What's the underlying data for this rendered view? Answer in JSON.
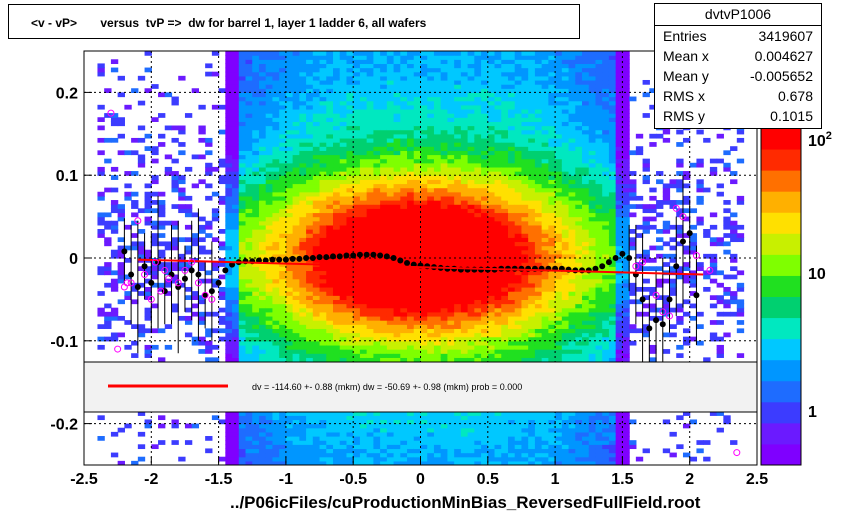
{
  "title": "<v - vP>       versus  tvP =>  dw for barrel 1, layer 1 ladder 6, all wafers",
  "stats": {
    "name": "dvtvP1006",
    "rows": [
      {
        "label": "Entries",
        "value": "3419607"
      },
      {
        "label": "Mean x",
        "value": "0.004627"
      },
      {
        "label": "Mean y",
        "value": "-0.005652"
      },
      {
        "label": "RMS x",
        "value": "0.678"
      },
      {
        "label": "RMS y",
        "value": "0.1015"
      }
    ]
  },
  "footer": "../P06icFiles/cuProductionMinBias_ReversedFullField.root",
  "legend": {
    "text": "dv = -114.60 +-  0.88 (mkm) dw =  -50.69 +-  0.98 (mkm) prob = 0.000",
    "line_color": "#ff0000"
  },
  "colors": {
    "fit_line": "#ff0000",
    "profile_points": "#000000",
    "mean_markers": "#ff00ff",
    "palette": [
      "#7f00ff",
      "#6b1aff",
      "#3c3cff",
      "#1e6cff",
      "#0096ff",
      "#00c8ff",
      "#00e8c0",
      "#00d070",
      "#20e020",
      "#7fff00",
      "#c8f000",
      "#ffe000",
      "#ffb000",
      "#ff7000",
      "#ff2a00",
      "#ff0000"
    ]
  },
  "chart_data": {
    "type": "heatmap",
    "title": "<v - vP>       versus  tvP =>  dw for barrel 1, layer 1 ladder 6, all wafers",
    "xlabel": "",
    "ylabel": "",
    "xlim": [
      -2.5,
      2.5
    ],
    "ylim": [
      -0.25,
      0.25
    ],
    "x_ticks": [
      "-2.5",
      "-2",
      "-1.5",
      "-1",
      "-0.5",
      "0",
      "0.5",
      "1",
      "1.5",
      "2",
      "2.5"
    ],
    "y_ticks": [
      "-0.2",
      "-0.1",
      "0",
      "0.1",
      "0.2"
    ],
    "z_scale": "log",
    "z_ticks": [
      "1",
      "10",
      "10^2"
    ],
    "grid": true,
    "fit_line": {
      "x": [
        -2.1,
        2.1
      ],
      "y": [
        -0.002,
        -0.02
      ]
    },
    "series": [
      {
        "kind": "profile",
        "x": [
          -2.2,
          -2.15,
          -2.1,
          -2.05,
          -2.0,
          -1.95,
          -1.9,
          -1.85,
          -1.8,
          -1.75,
          -1.7,
          -1.65,
          -1.6,
          -1.55,
          -1.5,
          -1.45,
          -1.4,
          -1.35,
          -1.3,
          -1.25,
          -1.2,
          -1.15,
          -1.1,
          -1.05,
          -1.0,
          -0.95,
          -0.9,
          -0.85,
          -0.8,
          -0.75,
          -0.7,
          -0.65,
          -0.6,
          -0.55,
          -0.5,
          -0.45,
          -0.4,
          -0.35,
          -0.3,
          -0.25,
          -0.2,
          -0.15,
          -0.1,
          -0.05,
          0.0,
          0.05,
          0.1,
          0.15,
          0.2,
          0.25,
          0.3,
          0.35,
          0.4,
          0.45,
          0.5,
          0.55,
          0.6,
          0.65,
          0.7,
          0.75,
          0.8,
          0.85,
          0.9,
          0.95,
          1.0,
          1.05,
          1.1,
          1.15,
          1.2,
          1.25,
          1.3,
          1.35,
          1.4,
          1.45,
          1.5,
          1.55,
          1.6,
          1.65,
          1.7,
          1.75,
          1.8,
          1.85,
          1.9,
          1.95,
          2.0,
          2.05
        ],
        "y": [
          0.008,
          -0.02,
          -0.035,
          -0.01,
          -0.03,
          -0.005,
          -0.04,
          -0.02,
          -0.035,
          -0.025,
          -0.015,
          -0.02,
          -0.045,
          -0.04,
          -0.03,
          -0.015,
          -0.008,
          -0.005,
          -0.004,
          -0.004,
          -0.003,
          -0.003,
          -0.002,
          -0.002,
          -0.002,
          -0.001,
          -0.001,
          0.0,
          0.0,
          0.001,
          0.001,
          0.002,
          0.002,
          0.003,
          0.003,
          0.004,
          0.004,
          0.004,
          0.003,
          0.002,
          0.0,
          -0.003,
          -0.006,
          -0.008,
          -0.009,
          -0.01,
          -0.011,
          -0.012,
          -0.013,
          -0.013,
          -0.014,
          -0.014,
          -0.014,
          -0.014,
          -0.014,
          -0.014,
          -0.013,
          -0.013,
          -0.013,
          -0.013,
          -0.013,
          -0.013,
          -0.013,
          -0.013,
          -0.013,
          -0.013,
          -0.014,
          -0.015,
          -0.015,
          -0.015,
          -0.013,
          -0.01,
          -0.005,
          0.0,
          0.005,
          0.0,
          -0.02,
          -0.05,
          -0.085,
          -0.075,
          -0.08,
          -0.05,
          -0.01,
          0.02,
          0.03,
          -0.045
        ]
      },
      {
        "kind": "mean_markers",
        "x": [
          -2.3,
          -2.25,
          -2.2,
          -2.18,
          -2.15,
          -2.1,
          -2.05,
          -2.0,
          -1.97,
          -1.93,
          -1.9,
          -1.87,
          -1.8,
          -1.75,
          -1.7,
          -1.65,
          -1.6,
          -1.55,
          1.6,
          1.65,
          1.75,
          1.8,
          1.85,
          1.9,
          1.95,
          2.05,
          2.15,
          2.35
        ],
        "y": [
          0.175,
          -0.11,
          -0.035,
          -0.03,
          -0.03,
          0.045,
          -0.02,
          -0.05,
          -0.005,
          -0.04,
          -0.015,
          -0.025,
          -0.03,
          -0.015,
          -0.005,
          -0.03,
          -0.045,
          -0.05,
          -0.01,
          -0.005,
          -0.045,
          -0.065,
          -0.07,
          0.06,
          0.05,
          0.003,
          -0.015,
          -0.235
        ]
      }
    ]
  }
}
